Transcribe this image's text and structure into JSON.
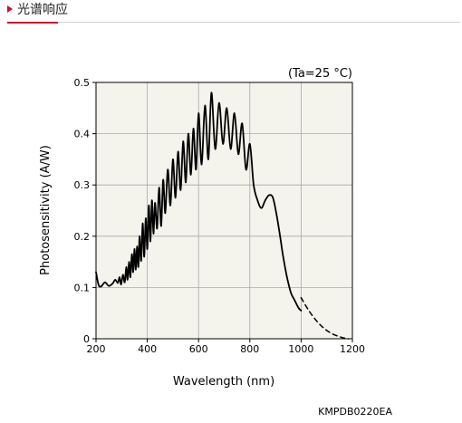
{
  "header": {
    "title": "光谱响应",
    "accent_color": "#c8102e",
    "marker_icon": "triangle-right-icon"
  },
  "chart_data": {
    "type": "line",
    "title": "",
    "condition_label": "(Ta=25 °C)",
    "xlabel": "Wavelength (nm)",
    "ylabel": "Photosensitivity (A/W)",
    "xlim": [
      200,
      1200
    ],
    "ylim": [
      0,
      0.5
    ],
    "xticks": [
      200,
      400,
      600,
      800,
      1000,
      1200
    ],
    "xtick_labels": [
      "200",
      "400",
      "600",
      "800",
      "1000",
      "1200"
    ],
    "yticks": [
      0,
      0.1,
      0.2,
      0.3,
      0.4,
      0.5
    ],
    "ytick_labels": [
      "0",
      "0.1",
      "0.2",
      "0.3",
      "0.4",
      "0.5"
    ],
    "grid": true,
    "plot_background": "#f4f3ec",
    "catalog_code": "KMPDB0220EA",
    "series": [
      {
        "style": "solid",
        "x": [
          200,
          210,
          220,
          235,
          250,
          265,
          275,
          285,
          292,
          298,
          305,
          312,
          318,
          323,
          329,
          334,
          340,
          345,
          350,
          355,
          360,
          365,
          370,
          376,
          382,
          388,
          394,
          400,
          406,
          412,
          418,
          424,
          430,
          438,
          446,
          454,
          462,
          470,
          480,
          490,
          500,
          510,
          520,
          530,
          540,
          550,
          560,
          570,
          580,
          590,
          600,
          612,
          625,
          638,
          650,
          665,
          680,
          695,
          710,
          725,
          740,
          755,
          770,
          785,
          800,
          815,
          830,
          845,
          860,
          875,
          890,
          905,
          918,
          930,
          945,
          960,
          975,
          990,
          1000
        ],
        "y": [
          0.13,
          0.105,
          0.102,
          0.11,
          0.103,
          0.108,
          0.115,
          0.109,
          0.12,
          0.106,
          0.125,
          0.11,
          0.14,
          0.115,
          0.15,
          0.12,
          0.165,
          0.13,
          0.175,
          0.135,
          0.18,
          0.14,
          0.2,
          0.152,
          0.225,
          0.16,
          0.235,
          0.175,
          0.26,
          0.19,
          0.27,
          0.205,
          0.265,
          0.215,
          0.295,
          0.22,
          0.31,
          0.245,
          0.33,
          0.26,
          0.35,
          0.275,
          0.365,
          0.29,
          0.385,
          0.305,
          0.4,
          0.32,
          0.41,
          0.33,
          0.44,
          0.34,
          0.455,
          0.35,
          0.48,
          0.37,
          0.46,
          0.38,
          0.45,
          0.37,
          0.44,
          0.36,
          0.42,
          0.33,
          0.38,
          0.3,
          0.27,
          0.255,
          0.27,
          0.28,
          0.275,
          0.24,
          0.2,
          0.16,
          0.12,
          0.09,
          0.075,
          0.06,
          0.055
        ]
      },
      {
        "style": "dashed",
        "x": [
          1000,
          1030,
          1060,
          1090,
          1120,
          1150,
          1170,
          1185
        ],
        "y": [
          0.08,
          0.055,
          0.035,
          0.02,
          0.01,
          0.004,
          0.001,
          0
        ]
      }
    ]
  }
}
